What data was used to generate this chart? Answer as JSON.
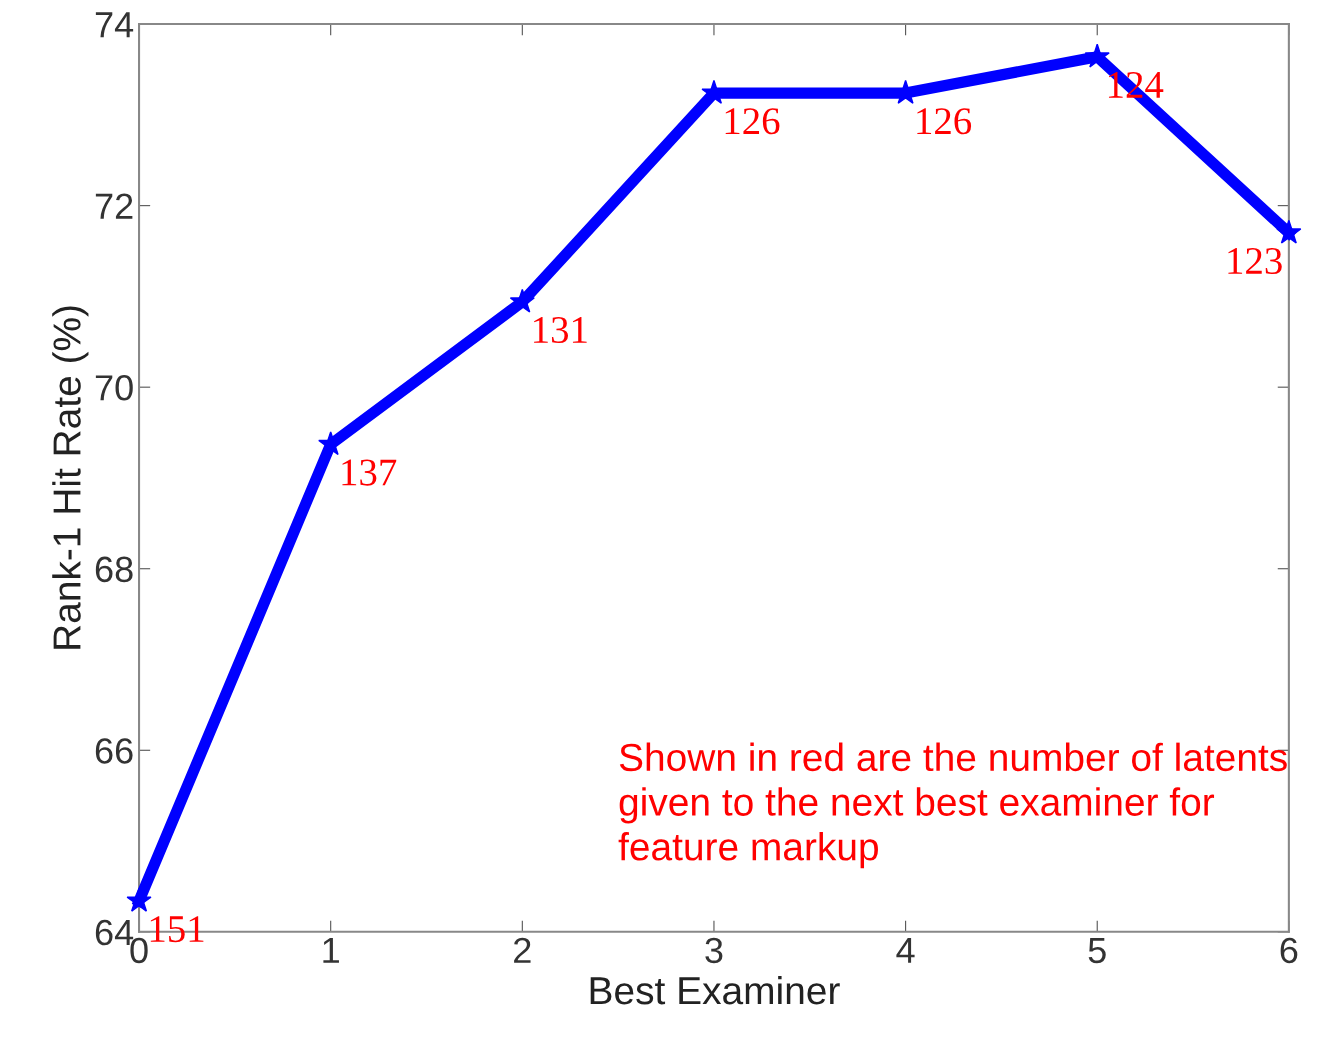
{
  "chart_data": {
    "type": "line",
    "xlabel": "Best Examiner",
    "ylabel": "Rank-1 Hit Rate (%)",
    "x": [
      0,
      1,
      2,
      3,
      4,
      5,
      6
    ],
    "series": [
      {
        "color": "#0000ff",
        "values": [
          64.34,
          69.37,
          70.94,
          73.24,
          73.24,
          73.64,
          71.7
        ]
      }
    ],
    "marker": "star",
    "line_style": "solid",
    "grid": false,
    "xlim": [
      0,
      6
    ],
    "ylim": [
      64,
      74
    ],
    "xticks": [
      0,
      1,
      2,
      3,
      4,
      5,
      6
    ],
    "yticks": [
      64,
      66,
      68,
      70,
      72,
      74
    ],
    "annotations": [
      {
        "text": "151",
        "x": 0,
        "y": 64.34
      },
      {
        "text": "137",
        "x": 1,
        "y": 69.37
      },
      {
        "text": "131",
        "x": 2,
        "y": 70.94
      },
      {
        "text": "126",
        "x": 3,
        "y": 73.24
      },
      {
        "text": "126",
        "x": 4,
        "y": 73.24
      },
      {
        "text": "124",
        "x": 5,
        "y": 73.64
      },
      {
        "text": "123",
        "x": 6,
        "y": 71.7
      },
      "Shown in red are the number of latents given to the next best examiner for feature markup"
    ]
  }
}
